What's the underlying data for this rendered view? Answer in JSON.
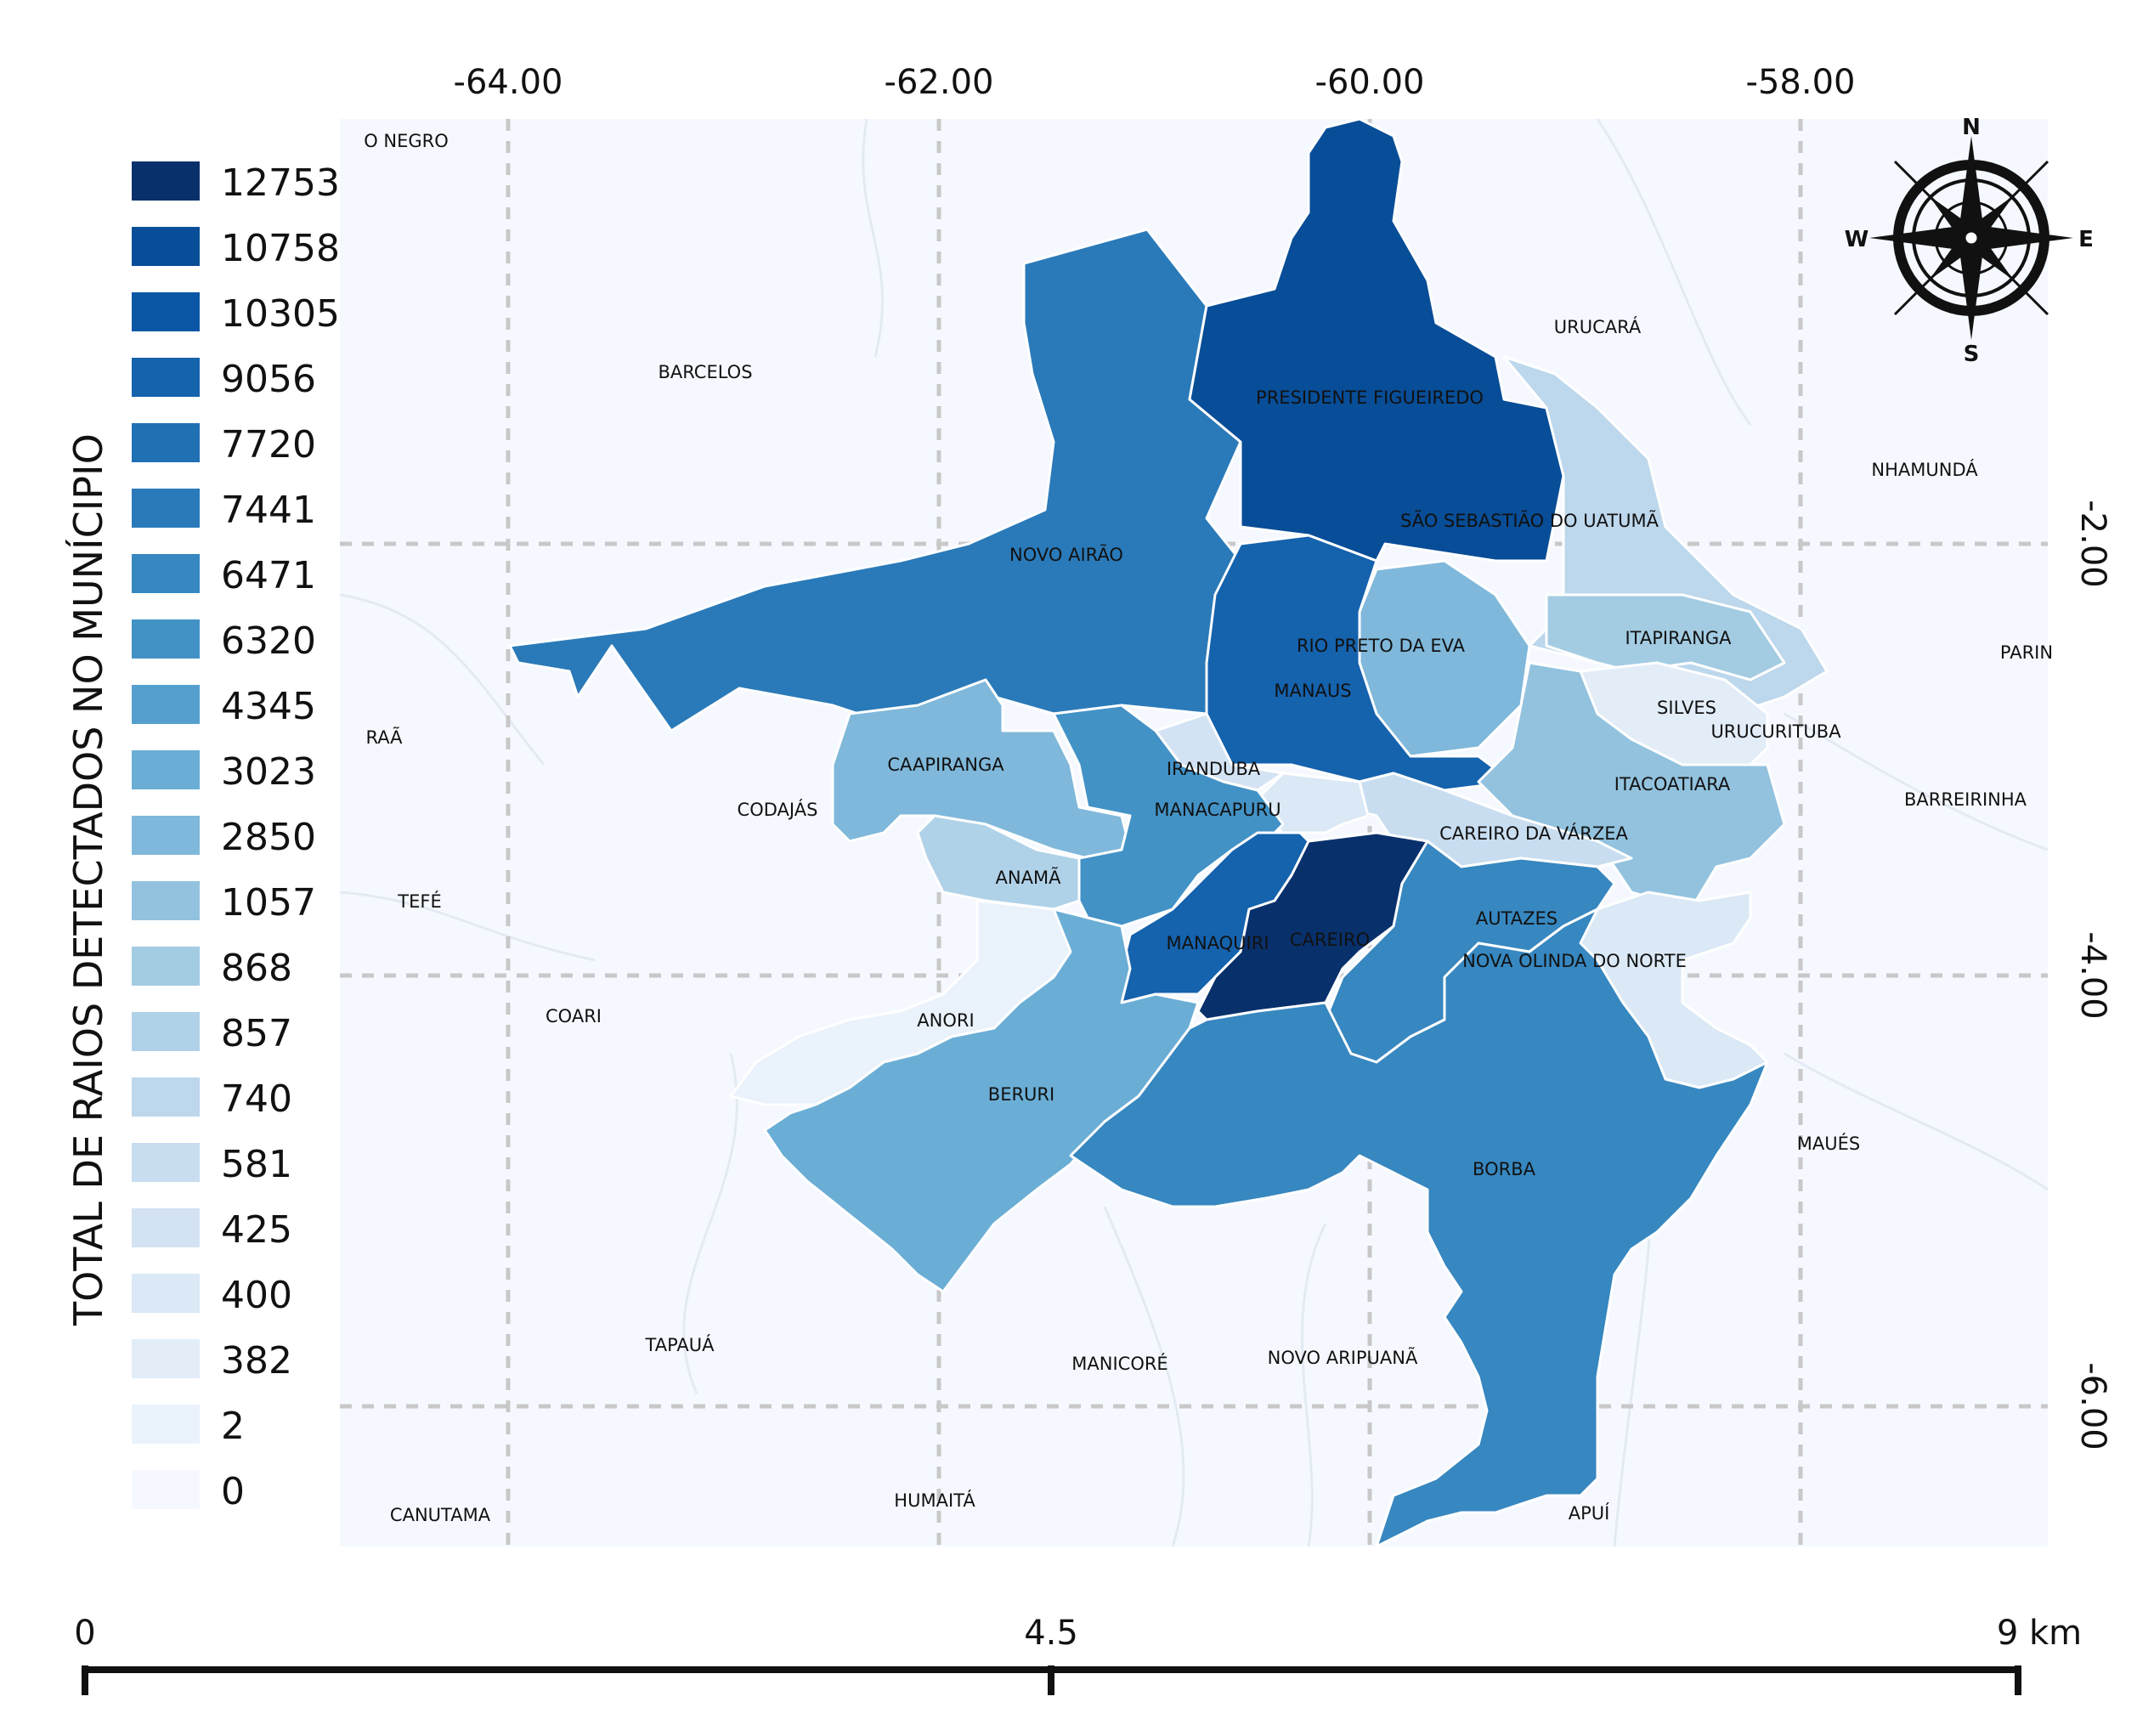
{
  "legend": {
    "title": "TOTAL DE RAIOS DETECTADOS NO MUNÍCIPIO",
    "classes": [
      {
        "value": "12753",
        "color": "#08306b"
      },
      {
        "value": "10758",
        "color": "#084d97"
      },
      {
        "value": "10305",
        "color": "#0c57a5"
      },
      {
        "value": "9056",
        "color": "#1562ad"
      },
      {
        "value": "7720",
        "color": "#2070b4"
      },
      {
        "value": "7441",
        "color": "#2a7ab9"
      },
      {
        "value": "6471",
        "color": "#3787c0"
      },
      {
        "value": "6320",
        "color": "#4292c6"
      },
      {
        "value": "4345",
        "color": "#559fce"
      },
      {
        "value": "3023",
        "color": "#6aaed6"
      },
      {
        "value": "2850",
        "color": "#7fb8da"
      },
      {
        "value": "1057",
        "color": "#92c2de"
      },
      {
        "value": "868",
        "color": "#a3cce3"
      },
      {
        "value": "857",
        "color": "#b0d2e8"
      },
      {
        "value": "740",
        "color": "#bdd7ec"
      },
      {
        "value": "581",
        "color": "#c8ddf0"
      },
      {
        "value": "425",
        "color": "#d3e3f3"
      },
      {
        "value": "400",
        "color": "#dbe9f6"
      },
      {
        "value": "382",
        "color": "#e2edf8"
      },
      {
        "value": "2",
        "color": "#eaf2fb"
      },
      {
        "value": "0",
        "color": "#f5f9ff"
      }
    ]
  },
  "axes": {
    "longitude_labels": [
      "-64.00",
      "-62.00",
      "-60.00",
      "-58.00"
    ],
    "latitude_labels": [
      "-2.00",
      "-4.00",
      "-6.00"
    ]
  },
  "municipalities": {
    "rio_negro": "O NEGRO",
    "barcelos": "BARCELOS",
    "urucara": "URUCARÁ",
    "nhamunda": "NHAMUNDÁ",
    "parintins": "PARIN",
    "novo_airao": "NOVO AIRÃO",
    "presidente_figueiredo": "PRESIDENTE FIGUEIREDO",
    "sao_sebastiao": "SÃO SEBASTIÃO DO UATUMÃ",
    "rio_preto": "RIO PRETO DA EVA",
    "itapiranga": "ITAPIRANGA",
    "manaus": "MANAUS",
    "silves": "SILVES",
    "urucurituba": "URUCURITUBA",
    "maraa": "RAÃ",
    "caapiranga": "CAAPIRANGA",
    "iranduba": "IRANDUBA",
    "itacoatiara": "ITACOATIARA",
    "barreirinha": "BARREIRINHA",
    "codajas": "CODAJÁS",
    "manacapuru": "MANACAPURU",
    "careiro_varzea": "CAREIRO DA VÁRZEA",
    "anama": "ANAMÃ",
    "tefe": "TEFÉ",
    "autazes": "AUTAZES",
    "manaquiri": "MANAQUIRI",
    "careiro": "CAREIRO",
    "nova_olinda": "NOVA OLINDA DO NORTE",
    "coari": "COARI",
    "anori": "ANORI",
    "beruri": "BERURI",
    "maues": "MAUÉS",
    "borba": "BORBA",
    "tapaua": "TAPAUÁ",
    "manicore": "MANICORÉ",
    "novo_aripuana": "NOVO ARIPUANÃ",
    "canutama": "CANUTAMA",
    "humaita": "HUMAITÁ",
    "apui": "APUÍ"
  },
  "compass": {
    "n": "N",
    "s": "S",
    "e": "E",
    "w": "W"
  },
  "scale_bar": {
    "start": "0",
    "mid": "4.5",
    "end": "9 km"
  }
}
